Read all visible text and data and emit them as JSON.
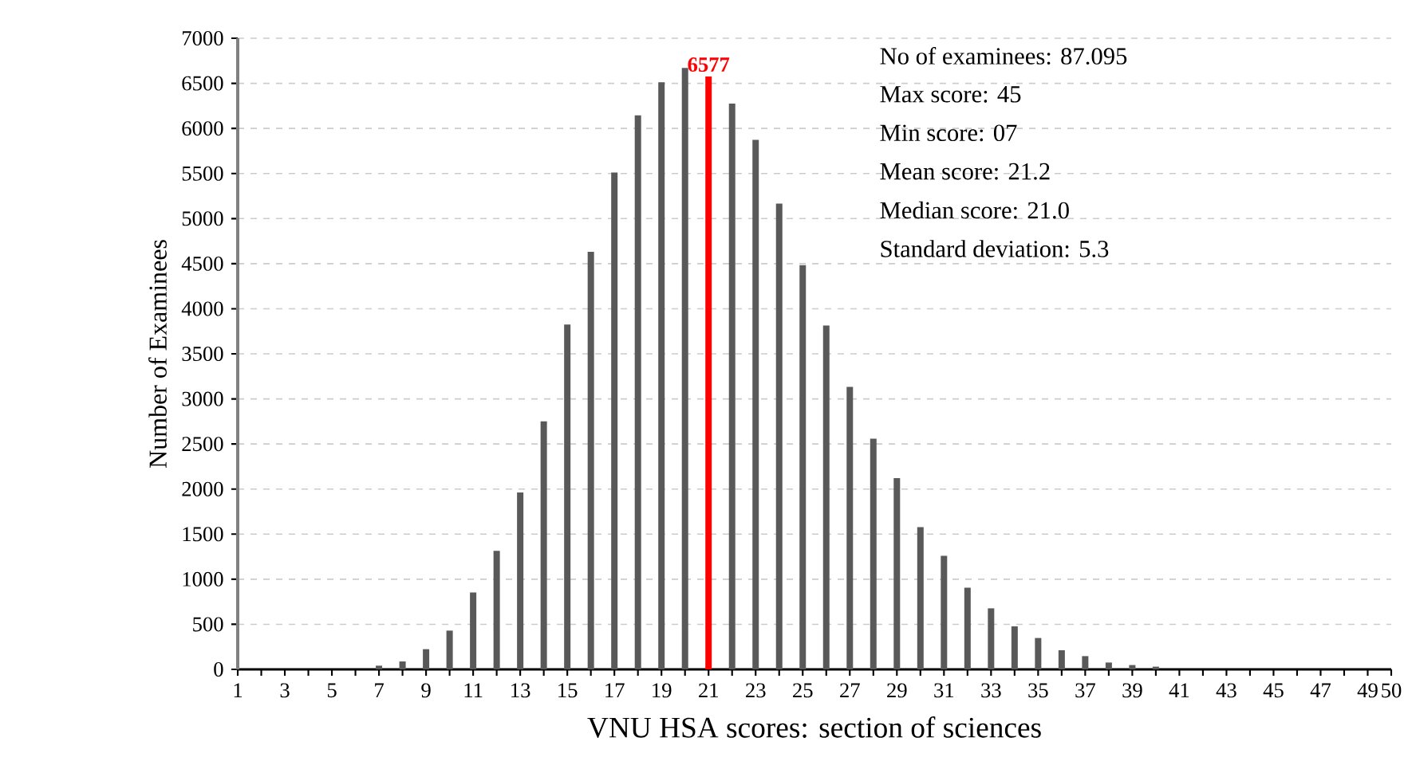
{
  "chart_data": {
    "type": "bar",
    "xlabel": "VNU HSA scores: section of sciences",
    "ylabel": "Number of Examinees",
    "categories": [
      "1",
      null,
      "3",
      null,
      "5",
      null,
      "7",
      null,
      "9",
      null,
      "11",
      null,
      "13",
      null,
      "15",
      null,
      "17",
      null,
      "19",
      null,
      "21",
      null,
      "23",
      null,
      "25",
      null,
      "27",
      null,
      "29",
      null,
      "31",
      null,
      "33",
      null,
      "35",
      null,
      "37",
      null,
      "39",
      null,
      "41",
      null,
      "43",
      null,
      "45",
      null,
      "47",
      null,
      "49",
      "50"
    ],
    "values": [
      0,
      0,
      0,
      0,
      0,
      0,
      41,
      88,
      224,
      430,
      854,
      1314,
      1962,
      2752,
      3824,
      4631,
      5510,
      6146,
      6511,
      6670,
      6577,
      6275,
      5874,
      5167,
      4484,
      3813,
      3134,
      2558,
      2121,
      1578,
      1260,
      907,
      677,
      477,
      348,
      212,
      147,
      76,
      48,
      30,
      0,
      0,
      0,
      0,
      0,
      0,
      0,
      0,
      0,
      0
    ],
    "colors": [
      "#595959",
      "#595959",
      "#595959",
      "#595959",
      "#595959",
      "#595959",
      "#595959",
      "#595959",
      "#595959",
      "#595959",
      "#595959",
      "#595959",
      "#595959",
      "#595959",
      "#595959",
      "#595959",
      "#595959",
      "#595959",
      "#595959",
      "#595959",
      "#ff0000",
      "#595959",
      "#595959",
      "#595959",
      "#595959",
      "#595959",
      "#595959",
      "#595959",
      "#595959",
      "#595959",
      "#595959",
      "#595959",
      "#595959",
      "#595959",
      "#595959",
      "#595959",
      "#595959",
      "#595959",
      "#595959",
      "#595959",
      "#595959",
      "#595959",
      "#595959",
      "#595959",
      "#595959",
      "#595959",
      "#595959",
      "#595959",
      "#595959",
      "#595959"
    ],
    "value_labels": [
      null,
      null,
      null,
      null,
      null,
      null,
      null,
      null,
      null,
      null,
      null,
      null,
      null,
      null,
      null,
      null,
      null,
      null,
      null,
      null,
      "6577",
      null,
      null,
      null,
      null,
      null,
      null,
      null,
      null,
      null,
      null,
      null,
      null,
      null,
      null,
      null,
      null,
      null,
      null,
      null,
      null,
      null,
      null,
      null,
      null,
      null,
      null,
      null,
      null,
      null
    ],
    "ylim": [
      0,
      7000
    ],
    "yticks": [
      0,
      500,
      1000,
      1500,
      2000,
      2500,
      3000,
      3500,
      4000,
      4500,
      5000,
      5500,
      6000,
      6500,
      7000
    ],
    "grid": "y",
    "annotations": [
      "No of examinees: 87.095",
      "Max score: 45",
      "Min score: 07",
      "Mean score: 21.2",
      "Median score: 21.0",
      "Standard deviation: 5.3"
    ]
  }
}
